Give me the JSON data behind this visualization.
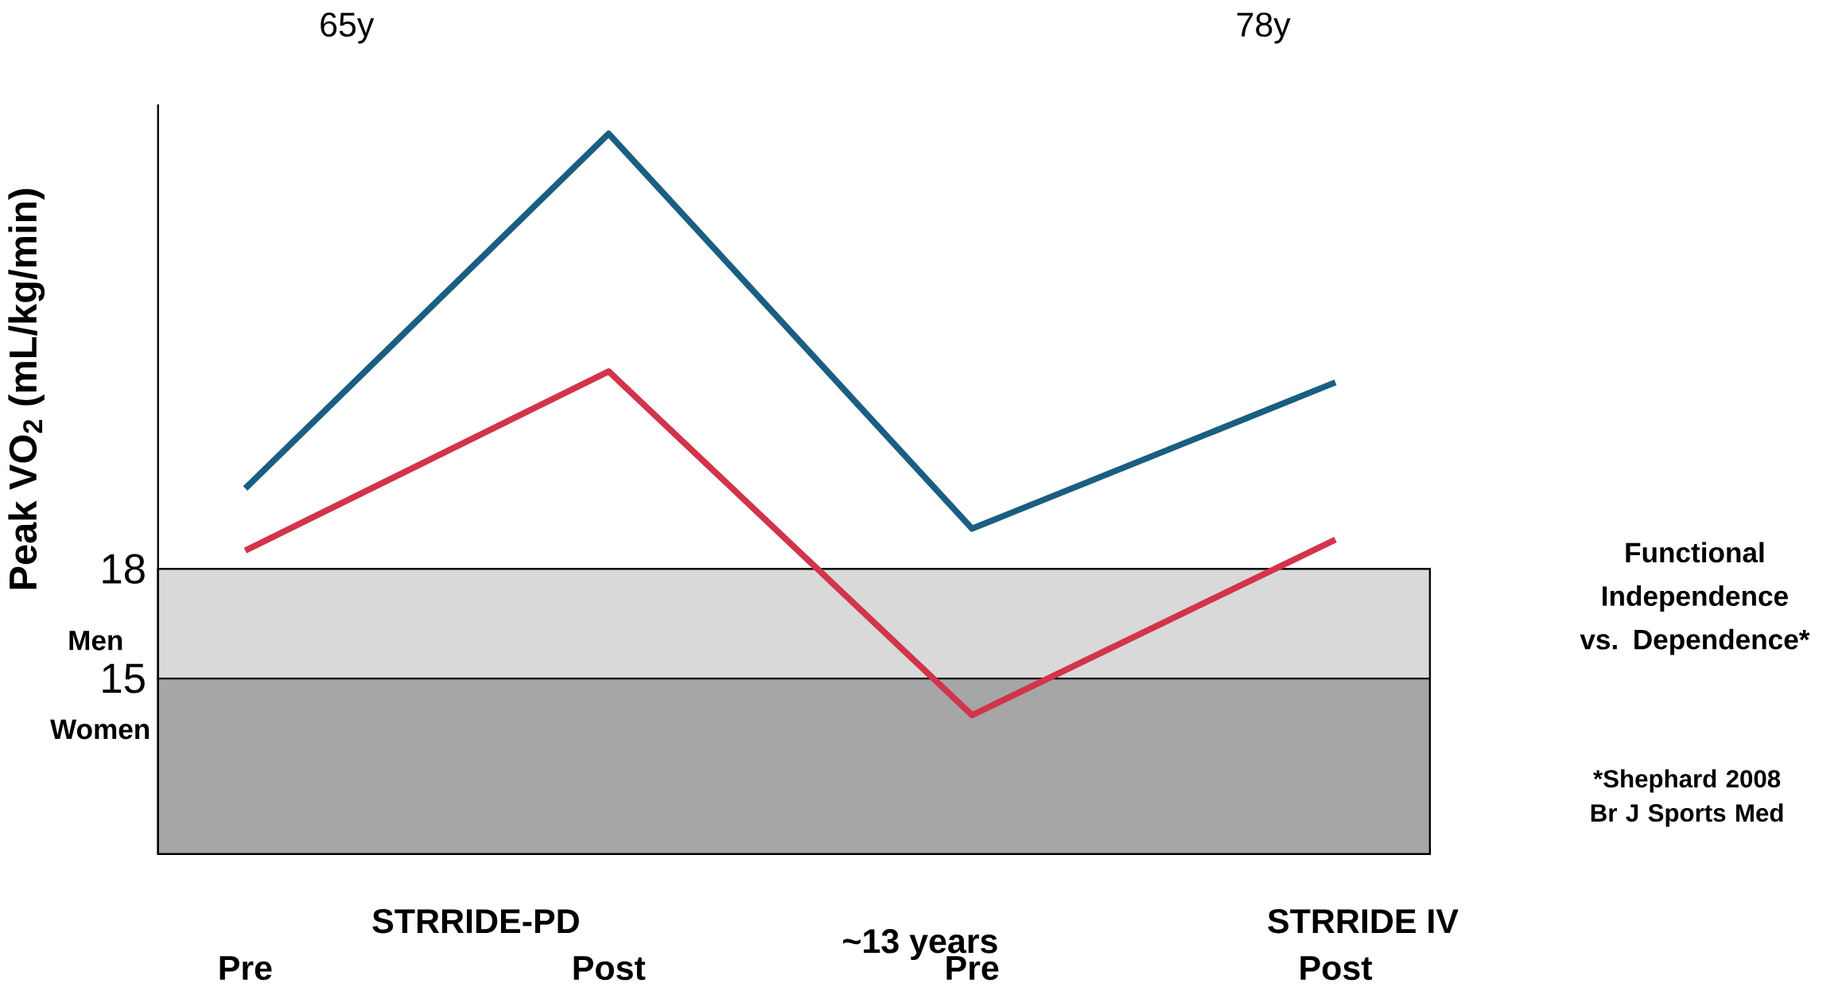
{
  "chart_data": {
    "type": "line",
    "ylabel": "Peak VO$_{2}$ (mL/kg/min)",
    "categories": [
      "Pre",
      "Post",
      "Pre",
      "Post"
    ],
    "series": [
      {
        "color": "#1a5e82",
        "values": [
          20.2,
          29.9,
          19.1,
          23.1
        ]
      },
      {
        "color": "#d2344a",
        "values": [
          18.5,
          23.4,
          14.0,
          18.8
        ]
      }
    ],
    "ylim": [
      10.2,
      30.7
    ],
    "yticks": [
      15,
      18
    ],
    "bands": [
      {
        "axis": "y",
        "from": 15,
        "to": 18,
        "label": "Men",
        "color": "#d9d9d9"
      },
      {
        "axis": "y",
        "from": 10.2,
        "to": 15,
        "label": "Women",
        "color": "#a6a6a6"
      }
    ],
    "annotations": [
      "65y",
      "78y",
      "STRRIDE-PD",
      "STRRIDE IV",
      "~13 years",
      "Functional Independence vs. Dependence*",
      "*Shephard 2008 Br J Sports Med"
    ],
    "grid": false
  }
}
